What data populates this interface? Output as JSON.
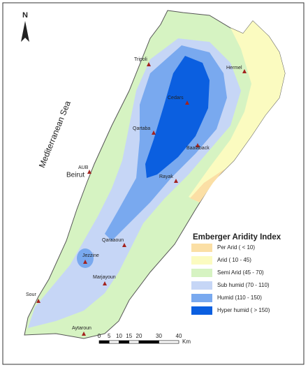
{
  "north": "N",
  "sea": "Mediterranean Sea",
  "places": [
    "Tripoli",
    "Hermel",
    "Cedars",
    "Qartaba",
    "Baalaback",
    "AUB",
    "Beirut",
    "Rayak",
    "Qaraaoun",
    "Jezzine",
    "Marjayoun",
    "Sour",
    "Aytaroun"
  ],
  "legend": {
    "title": "Emberger Aridity Index",
    "items": [
      {
        "label": "Per Arid ( <  10)",
        "color": "#fbdfa5"
      },
      {
        "label": "Arid ( 10 - 45)",
        "color": "#fbfbc0"
      },
      {
        "label": "Semi Arid (45 - 70)",
        "color": "#d6f3c2"
      },
      {
        "label": "Sub humid (70 - 110)",
        "color": "#c6d6f6"
      },
      {
        "label": "Humid (110 - 150)",
        "color": "#79a9ef"
      },
      {
        "label": "Hyper humid ( > 150)",
        "color": "#0b5fe0"
      }
    ]
  },
  "scale": {
    "labels": [
      0,
      5,
      10,
      15,
      20,
      30,
      40
    ],
    "unit": "Km"
  }
}
